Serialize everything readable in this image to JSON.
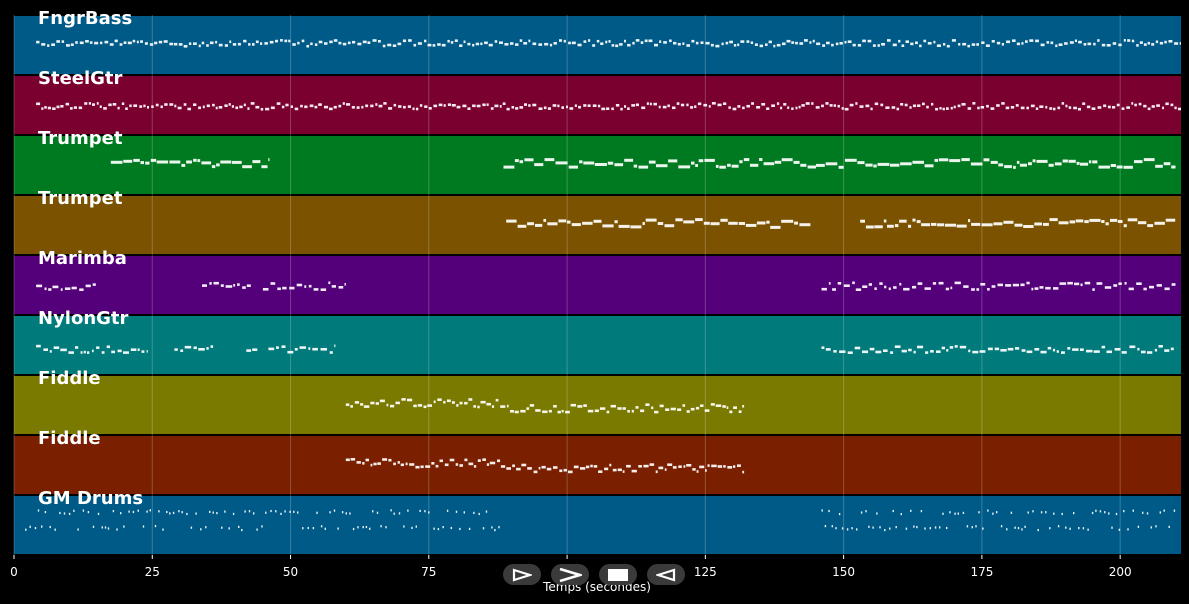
{
  "chart_data": {
    "type": "piano-roll",
    "xlabel": "Temps (secondes)",
    "xlim": [
      0,
      211
    ],
    "xticks": [
      0,
      25,
      50,
      75,
      100,
      125,
      150,
      175,
      200
    ],
    "tick_labels": [
      "0",
      "25",
      "50",
      "75",
      "100",
      "125",
      "150",
      "175",
      "200"
    ],
    "grid": true,
    "tracks": [
      {
        "name": "FngrBass",
        "color": "#005a87",
        "segments": [
          [
            4,
            211
          ]
        ],
        "style": "dense",
        "pitch": 0.45
      },
      {
        "name": "SteelGtr",
        "color": "#7a0030",
        "segments": [
          [
            4,
            211
          ]
        ],
        "style": "dense",
        "pitch": 0.5
      },
      {
        "name": "Trumpet",
        "color": "#007a20",
        "segments": [
          [
            17.5,
            46
          ],
          [
            88.5,
            145
          ],
          [
            145,
            210
          ]
        ],
        "style": "melody",
        "pitch": 0.45
      },
      {
        "name": "Trumpet",
        "color": "#7a5200",
        "segments": [
          [
            89,
            144
          ],
          [
            153,
            210
          ]
        ],
        "style": "melody",
        "pitch": 0.45
      },
      {
        "name": "Marimba",
        "color": "#54007a",
        "segments": [
          [
            4,
            15
          ],
          [
            34,
            43
          ],
          [
            45,
            60
          ],
          [
            146,
            210
          ]
        ],
        "style": "sparse",
        "pitch": 0.5
      },
      {
        "name": "NylonGtr",
        "color": "#007a7a",
        "segments": [
          [
            4,
            24
          ],
          [
            29,
            36
          ],
          [
            42,
            44
          ],
          [
            46,
            58
          ],
          [
            146,
            210
          ]
        ],
        "style": "sparse",
        "pitch": 0.55
      },
      {
        "name": "Fiddle",
        "color": "#7a7a00",
        "segments": [
          [
            60,
            132
          ]
        ],
        "style": "fiddle",
        "pitch": 0.45
      },
      {
        "name": "Fiddle",
        "color": "#7a2000",
        "segments": [
          [
            60,
            132
          ]
        ],
        "style": "fiddle",
        "pitch": 0.45
      },
      {
        "name": "GM Drums",
        "color": "#005a87",
        "segments": [
          [
            2,
            88
          ],
          [
            146,
            210
          ]
        ],
        "style": "drums",
        "pitch": 0.5
      }
    ]
  },
  "controls": {
    "play_icon": "play-icon",
    "forward_icon": "forward-icon",
    "stop_icon": "stop-icon",
    "back_icon": "back-icon"
  }
}
